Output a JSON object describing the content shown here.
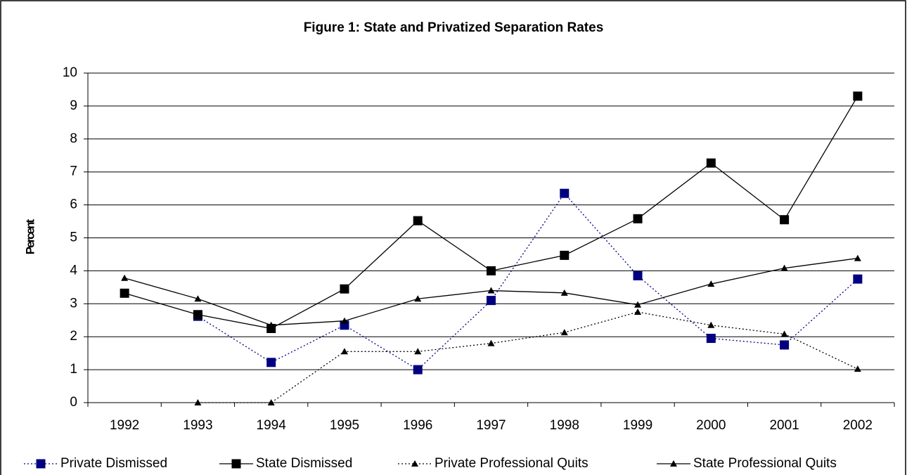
{
  "chart_data": {
    "type": "line",
    "title": "Figure 1: State and Privatized Separation Rates",
    "y_label": "Percent",
    "categories": [
      "1992",
      "1993",
      "1994",
      "1995",
      "1996",
      "1997",
      "1998",
      "1999",
      "2000",
      "2001",
      "2002"
    ],
    "series": [
      {
        "name": "Private Dismissed",
        "color": "#000080",
        "dashed": true,
        "marker": "square",
        "values": [
          null,
          2.62,
          1.22,
          2.35,
          1.0,
          3.1,
          6.35,
          3.85,
          1.95,
          1.75,
          3.75
        ]
      },
      {
        "name": "State Dismissed",
        "color": "#000000",
        "dashed": false,
        "marker": "square",
        "values": [
          3.32,
          2.67,
          2.25,
          3.45,
          5.52,
          4.0,
          4.47,
          5.58,
          7.27,
          5.55,
          9.3
        ]
      },
      {
        "name": "Private Professional Quits",
        "color": "#000000",
        "dashed": true,
        "marker": "triangle",
        "values": [
          null,
          0,
          0,
          1.55,
          1.55,
          1.8,
          2.13,
          2.75,
          2.35,
          2.08,
          1.02
        ]
      },
      {
        "name": "State Professional Quits",
        "color": "#000000",
        "dashed": false,
        "marker": "triangle",
        "values": [
          3.78,
          3.15,
          2.35,
          2.48,
          3.15,
          3.4,
          3.33,
          2.97,
          3.6,
          4.08,
          4.38
        ]
      }
    ],
    "ylim": [
      0,
      10
    ],
    "yticks": [
      0,
      1,
      2,
      3,
      4,
      5,
      6,
      7,
      8,
      9,
      10
    ],
    "grid": true,
    "legend": "bottom"
  }
}
